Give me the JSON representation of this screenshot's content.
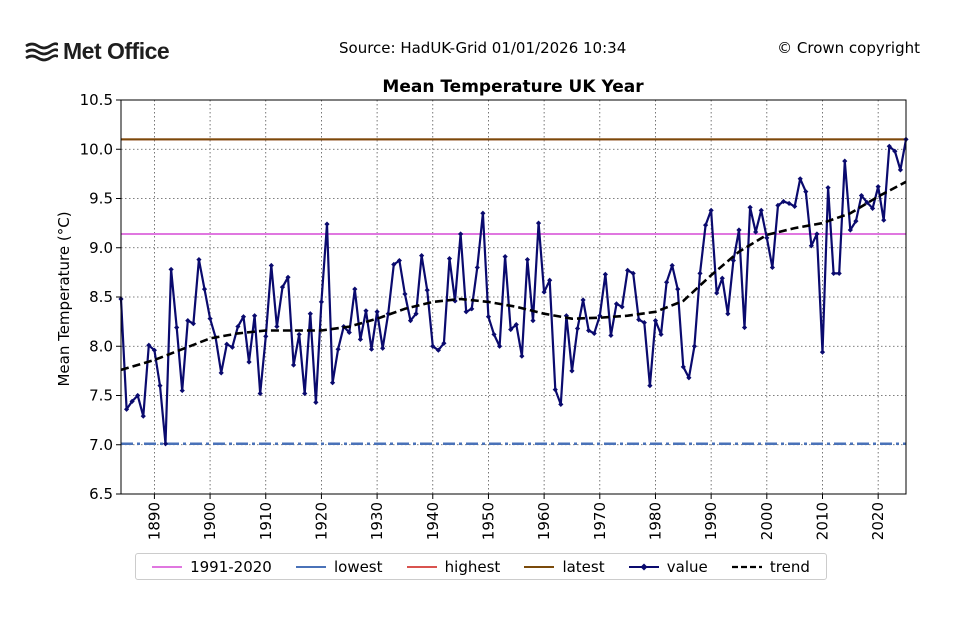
{
  "header": {
    "logo_text": "Met Office",
    "source": "Source: HadUK-Grid 01/01/2026 10:34",
    "copyright": "© Crown copyright"
  },
  "colors": {
    "baseline": "#e077e0",
    "lowest": "#4a72b8",
    "highest": "#d9534f",
    "latest": "#7a4a0a",
    "value": "#0a0a6e",
    "trend": "#000000",
    "grid": "#555555"
  },
  "chart_data": {
    "type": "line",
    "title": "Mean Temperature UK Year",
    "xlabel": "",
    "ylabel": "Mean Temperature (°C)",
    "xlim": [
      1884,
      2025
    ],
    "ylim": [
      6.5,
      10.5
    ],
    "xticks": [
      1890,
      1900,
      1910,
      1920,
      1930,
      1940,
      1950,
      1960,
      1970,
      1980,
      1990,
      2000,
      2010,
      2020
    ],
    "yticks": [
      "6.5",
      "7.0",
      "7.5",
      "8.0",
      "8.5",
      "9.0",
      "9.5",
      "10.0",
      "10.5"
    ],
    "grid": true,
    "legend_position": "bottom",
    "reference_lines": {
      "baseline_1991_2020": 9.14,
      "lowest": 7.01,
      "highest": 10.1,
      "latest": 10.1
    },
    "legend": [
      "1991-2020",
      "lowest",
      "highest",
      "latest",
      "value",
      "trend"
    ],
    "series": [
      {
        "name": "value",
        "x": [
          1884,
          1885,
          1886,
          1887,
          1888,
          1889,
          1890,
          1891,
          1892,
          1893,
          1894,
          1895,
          1896,
          1897,
          1898,
          1899,
          1900,
          1901,
          1902,
          1903,
          1904,
          1905,
          1906,
          1907,
          1908,
          1909,
          1910,
          1911,
          1912,
          1913,
          1914,
          1915,
          1916,
          1917,
          1918,
          1919,
          1920,
          1921,
          1922,
          1923,
          1924,
          1925,
          1926,
          1927,
          1928,
          1929,
          1930,
          1931,
          1932,
          1933,
          1934,
          1935,
          1936,
          1937,
          1938,
          1939,
          1940,
          1941,
          1942,
          1943,
          1944,
          1945,
          1946,
          1947,
          1948,
          1949,
          1950,
          1951,
          1952,
          1953,
          1954,
          1955,
          1956,
          1957,
          1958,
          1959,
          1960,
          1961,
          1962,
          1963,
          1964,
          1965,
          1966,
          1967,
          1968,
          1969,
          1970,
          1971,
          1972,
          1973,
          1974,
          1975,
          1976,
          1977,
          1978,
          1979,
          1980,
          1981,
          1982,
          1983,
          1984,
          1985,
          1986,
          1987,
          1988,
          1989,
          1990,
          1991,
          1992,
          1993,
          1994,
          1995,
          1996,
          1997,
          1998,
          1999,
          2000,
          2001,
          2002,
          2003,
          2004,
          2005,
          2006,
          2007,
          2008,
          2009,
          2010,
          2011,
          2012,
          2013,
          2014,
          2015,
          2016,
          2017,
          2018,
          2019,
          2020,
          2021,
          2022,
          2023,
          2024,
          2025
        ],
        "values": [
          8.48,
          7.36,
          7.44,
          7.5,
          7.29,
          8.01,
          7.96,
          7.6,
          7.01,
          8.78,
          8.19,
          7.55,
          8.26,
          8.23,
          8.88,
          8.58,
          8.28,
          8.09,
          7.73,
          8.02,
          7.99,
          8.2,
          8.3,
          7.84,
          8.31,
          7.52,
          8.1,
          8.82,
          8.2,
          8.6,
          8.7,
          7.81,
          8.12,
          7.52,
          8.33,
          7.43,
          8.45,
          9.24,
          7.63,
          7.97,
          8.2,
          8.14,
          8.58,
          8.07,
          8.36,
          7.97,
          8.35,
          7.98,
          8.33,
          8.83,
          8.87,
          8.53,
          8.26,
          8.33,
          8.92,
          8.57,
          8.0,
          7.96,
          8.03,
          8.89,
          8.46,
          9.14,
          8.35,
          8.38,
          8.8,
          9.35,
          8.3,
          8.12,
          8.0,
          8.91,
          8.17,
          8.22,
          7.9,
          8.88,
          8.26,
          9.25,
          8.55,
          8.67,
          7.56,
          7.41,
          8.31,
          7.75,
          8.18,
          8.47,
          8.16,
          8.13,
          8.31,
          8.73,
          8.11,
          8.43,
          8.4,
          8.77,
          8.74,
          8.27,
          8.24,
          7.6,
          8.26,
          8.12,
          8.65,
          8.82,
          8.58,
          7.79,
          7.68,
          8.0,
          8.74,
          9.23,
          9.38,
          8.54,
          8.69,
          8.33,
          8.87,
          9.18,
          8.19,
          9.41,
          9.16,
          9.38,
          9.1,
          8.8,
          9.43,
          9.47,
          9.45,
          9.42,
          9.7,
          9.57,
          9.02,
          9.14,
          7.94,
          9.61,
          8.74,
          8.74,
          9.88,
          9.18,
          9.27,
          9.53,
          9.46,
          9.4,
          9.62,
          9.28,
          10.03,
          9.98,
          9.79,
          10.1
        ]
      },
      {
        "name": "trend",
        "x": [
          1884,
          1890,
          1895,
          1900,
          1905,
          1910,
          1915,
          1920,
          1925,
          1930,
          1935,
          1940,
          1945,
          1950,
          1955,
          1960,
          1965,
          1970,
          1975,
          1980,
          1985,
          1990,
          1995,
          2000,
          2005,
          2010,
          2015,
          2020,
          2025
        ],
        "values": [
          7.76,
          7.86,
          7.97,
          8.08,
          8.13,
          8.16,
          8.16,
          8.16,
          8.2,
          8.28,
          8.38,
          8.45,
          8.48,
          8.45,
          8.4,
          8.33,
          8.28,
          8.29,
          8.31,
          8.35,
          8.46,
          8.72,
          8.96,
          9.13,
          9.2,
          9.25,
          9.35,
          9.52,
          9.67
        ]
      }
    ]
  }
}
